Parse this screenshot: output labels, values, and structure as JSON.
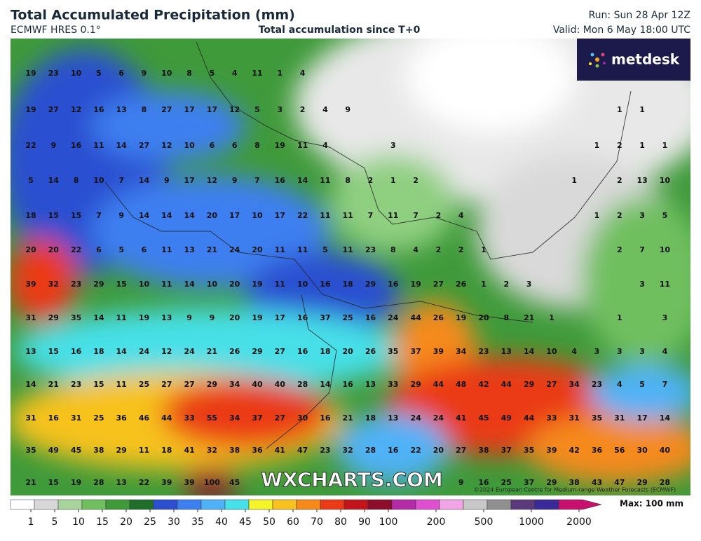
{
  "header": {
    "title": "Total Accumulated Precipitation (mm)",
    "model": "ECMWF HRES 0.1°",
    "subtitle": "Total accumulation since T+0",
    "run": "Run: Sun 28 Apr 12Z",
    "valid": "Valid: Mon 6 May 18:00 UTC"
  },
  "logo": "metdesk",
  "watermark": "WXCHARTS.COM",
  "credit": "©2024 European Centre for Medium-range Weather Forecasts (ECMWF)",
  "max_label": "Max: 100 mm",
  "grid_values": [
    [
      19,
      23,
      10,
      5,
      6,
      9,
      10,
      8,
      5,
      4,
      11,
      1,
      4,
      null,
      null,
      null,
      null,
      null,
      null,
      null,
      null,
      null,
      null,
      null,
      null,
      null,
      null,
      null,
      null
    ],
    [
      19,
      27,
      12,
      16,
      13,
      8,
      27,
      17,
      17,
      12,
      5,
      3,
      2,
      4,
      9,
      null,
      null,
      null,
      null,
      null,
      null,
      null,
      null,
      null,
      null,
      null,
      1,
      1,
      null
    ],
    [
      22,
      9,
      16,
      11,
      14,
      27,
      12,
      10,
      6,
      6,
      8,
      19,
      11,
      4,
      null,
      null,
      3,
      null,
      null,
      null,
      null,
      null,
      null,
      null,
      null,
      1,
      2,
      1,
      1
    ],
    [
      5,
      14,
      8,
      10,
      7,
      14,
      9,
      17,
      12,
      9,
      7,
      16,
      14,
      11,
      8,
      2,
      1,
      2,
      null,
      null,
      null,
      null,
      null,
      null,
      1,
      null,
      2,
      13,
      10
    ],
    [
      18,
      15,
      15,
      7,
      9,
      14,
      14,
      14,
      20,
      17,
      10,
      17,
      22,
      11,
      11,
      7,
      11,
      7,
      2,
      4,
      null,
      null,
      null,
      null,
      null,
      1,
      2,
      3,
      5
    ],
    [
      20,
      20,
      22,
      6,
      5,
      6,
      11,
      13,
      21,
      24,
      20,
      11,
      11,
      5,
      11,
      23,
      8,
      4,
      2,
      2,
      1,
      null,
      null,
      null,
      null,
      null,
      2,
      7,
      10
    ],
    [
      39,
      32,
      23,
      29,
      15,
      10,
      11,
      14,
      10,
      20,
      19,
      11,
      10,
      16,
      18,
      29,
      16,
      19,
      27,
      26,
      1,
      2,
      3,
      null,
      null,
      null,
      null,
      3,
      11
    ],
    [
      31,
      29,
      35,
      14,
      11,
      19,
      13,
      9,
      9,
      20,
      19,
      17,
      16,
      37,
      25,
      16,
      24,
      44,
      26,
      19,
      20,
      8,
      21,
      1,
      null,
      null,
      1,
      null,
      3
    ],
    [
      13,
      15,
      16,
      18,
      14,
      24,
      12,
      24,
      21,
      26,
      29,
      27,
      16,
      18,
      20,
      26,
      35,
      37,
      39,
      34,
      23,
      13,
      14,
      10,
      4,
      3,
      3,
      3,
      4
    ],
    [
      14,
      21,
      23,
      15,
      11,
      25,
      27,
      27,
      29,
      34,
      40,
      40,
      28,
      14,
      16,
      13,
      33,
      29,
      44,
      48,
      42,
      44,
      29,
      27,
      34,
      23,
      4,
      5,
      7
    ],
    [
      31,
      16,
      31,
      25,
      36,
      46,
      44,
      33,
      55,
      34,
      37,
      27,
      30,
      16,
      21,
      18,
      13,
      24,
      24,
      41,
      45,
      49,
      44,
      33,
      31,
      35,
      31,
      17,
      14
    ],
    [
      35,
      49,
      45,
      38,
      29,
      11,
      18,
      41,
      32,
      38,
      36,
      41,
      47,
      23,
      32,
      28,
      16,
      22,
      20,
      27,
      38,
      37,
      35,
      39,
      42,
      36,
      56,
      30,
      40
    ],
    [
      21,
      15,
      19,
      28,
      13,
      22,
      39,
      39,
      100,
      45,
      null,
      null,
      null,
      null,
      null,
      null,
      null,
      null,
      null,
      9,
      16,
      25,
      37,
      29,
      38,
      43,
      47,
      29,
      28
    ]
  ],
  "colorbar": {
    "labels": [
      1,
      5,
      10,
      15,
      20,
      25,
      30,
      35,
      40,
      45,
      50,
      60,
      70,
      80,
      90,
      100,
      200,
      500,
      1000,
      2000
    ],
    "colors": [
      "#ffffff",
      "#d8d8d8",
      "#a6d49a",
      "#6fbf5f",
      "#3f9a3a",
      "#1f6e2a",
      "#2c4fd0",
      "#3d7ff0",
      "#4fb2f7",
      "#46e0e8",
      "#f5f52a",
      "#f7c21e",
      "#f58a1a",
      "#ea3b16",
      "#c2151b",
      "#8c0e2a",
      "#b52aa6",
      "#e04fd0",
      "#f2a4e6",
      "#c8c8c8",
      "#8f8f8f",
      "#5a3a7a",
      "#3b2a9a",
      "#c8106e"
    ]
  }
}
